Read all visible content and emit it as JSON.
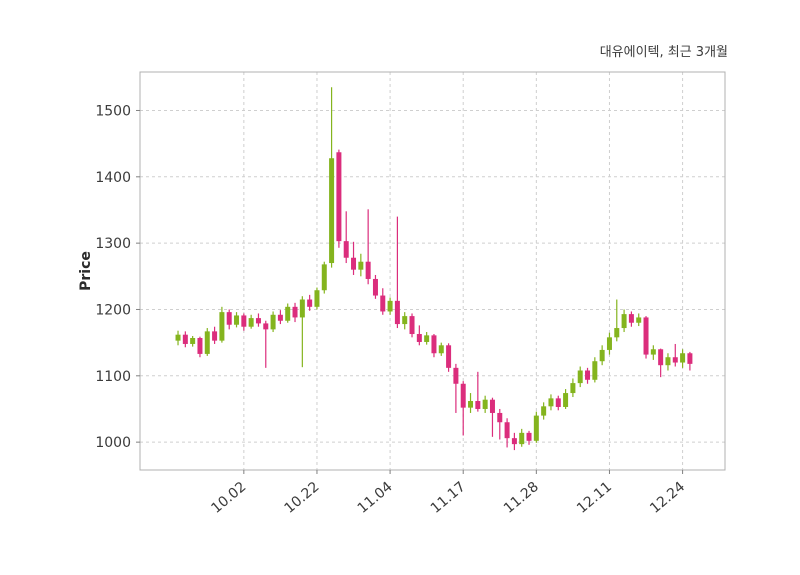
{
  "figure": {
    "title": "대유에이텍, 최근 3개월",
    "ylabel": "Price"
  },
  "chart_data": {
    "type": "candlestick",
    "title": "대유에이텍, 최근 3개월",
    "ylabel": "Price",
    "ylim": [
      958,
      1558
    ],
    "y_ticks": [
      1000,
      1100,
      1200,
      1300,
      1400,
      1500
    ],
    "x_tick_labels": [
      "10.02",
      "10.22",
      "11.04",
      "11.17",
      "11.28",
      "12.11",
      "12.24"
    ],
    "x_tick_indices": [
      9,
      19,
      29,
      39,
      49,
      59,
      69
    ],
    "xlim_index": [
      -5.2,
      74.8
    ],
    "grid": true,
    "up_color": "#84b41e",
    "down_color": "#db2d7c",
    "ohlc_order": [
      "open",
      "high",
      "low",
      "close"
    ],
    "candles": [
      [
        1153,
        1168,
        1146,
        1162
      ],
      [
        1162,
        1167,
        1143,
        1148
      ],
      [
        1148,
        1160,
        1144,
        1157
      ],
      [
        1157,
        1159,
        1128,
        1133
      ],
      [
        1133,
        1172,
        1130,
        1167
      ],
      [
        1167,
        1174,
        1148,
        1153
      ],
      [
        1153,
        1204,
        1150,
        1196
      ],
      [
        1196,
        1200,
        1170,
        1177
      ],
      [
        1177,
        1196,
        1173,
        1191
      ],
      [
        1191,
        1194,
        1168,
        1174
      ],
      [
        1174,
        1192,
        1171,
        1187
      ],
      [
        1187,
        1194,
        1174,
        1179
      ],
      [
        1179,
        1183,
        1112,
        1170
      ],
      [
        1170,
        1197,
        1166,
        1192
      ],
      [
        1192,
        1199,
        1178,
        1183
      ],
      [
        1183,
        1209,
        1180,
        1204
      ],
      [
        1204,
        1210,
        1181,
        1188
      ],
      [
        1188,
        1220,
        1113,
        1215
      ],
      [
        1215,
        1222,
        1198,
        1204
      ],
      [
        1204,
        1233,
        1200,
        1229
      ],
      [
        1229,
        1272,
        1224,
        1268
      ],
      [
        1270,
        1535,
        1263,
        1428
      ],
      [
        1437,
        1441,
        1293,
        1303
      ],
      [
        1303,
        1348,
        1270,
        1278
      ],
      [
        1278,
        1302,
        1252,
        1260
      ],
      [
        1260,
        1284,
        1250,
        1272
      ],
      [
        1272,
        1351,
        1238,
        1246
      ],
      [
        1246,
        1252,
        1216,
        1221
      ],
      [
        1221,
        1232,
        1192,
        1197
      ],
      [
        1197,
        1218,
        1192,
        1213
      ],
      [
        1213,
        1340,
        1172,
        1178
      ],
      [
        1178,
        1196,
        1170,
        1190
      ],
      [
        1190,
        1194,
        1158,
        1163
      ],
      [
        1163,
        1176,
        1146,
        1151
      ],
      [
        1151,
        1166,
        1147,
        1161
      ],
      [
        1161,
        1163,
        1128,
        1134
      ],
      [
        1134,
        1150,
        1130,
        1146
      ],
      [
        1146,
        1149,
        1106,
        1112
      ],
      [
        1112,
        1118,
        1044,
        1088
      ],
      [
        1088,
        1092,
        1010,
        1052
      ],
      [
        1052,
        1074,
        1044,
        1062
      ],
      [
        1062,
        1106,
        1046,
        1050
      ],
      [
        1050,
        1070,
        1044,
        1064
      ],
      [
        1064,
        1067,
        1008,
        1044
      ],
      [
        1044,
        1050,
        1004,
        1030
      ],
      [
        1030,
        1036,
        992,
        1006
      ],
      [
        1006,
        1014,
        988,
        997
      ],
      [
        997,
        1020,
        993,
        1014
      ],
      [
        1014,
        1017,
        996,
        1002
      ],
      [
        1002,
        1046,
        999,
        1040
      ],
      [
        1040,
        1060,
        1034,
        1054
      ],
      [
        1054,
        1072,
        1048,
        1066
      ],
      [
        1066,
        1070,
        1048,
        1053
      ],
      [
        1053,
        1080,
        1050,
        1074
      ],
      [
        1074,
        1096,
        1068,
        1089
      ],
      [
        1089,
        1114,
        1083,
        1108
      ],
      [
        1108,
        1112,
        1088,
        1094
      ],
      [
        1094,
        1128,
        1090,
        1122
      ],
      [
        1122,
        1146,
        1116,
        1139
      ],
      [
        1139,
        1165,
        1132,
        1158
      ],
      [
        1158,
        1215,
        1152,
        1172
      ],
      [
        1172,
        1200,
        1166,
        1193
      ],
      [
        1193,
        1197,
        1174,
        1180
      ],
      [
        1180,
        1194,
        1175,
        1188
      ],
      [
        1188,
        1190,
        1126,
        1132
      ],
      [
        1132,
        1146,
        1124,
        1140
      ],
      [
        1140,
        1141,
        1098,
        1116
      ],
      [
        1116,
        1134,
        1108,
        1128
      ],
      [
        1128,
        1148,
        1114,
        1120
      ],
      [
        1120,
        1140,
        1112,
        1134
      ],
      [
        1134,
        1136,
        1108,
        1118
      ]
    ]
  }
}
